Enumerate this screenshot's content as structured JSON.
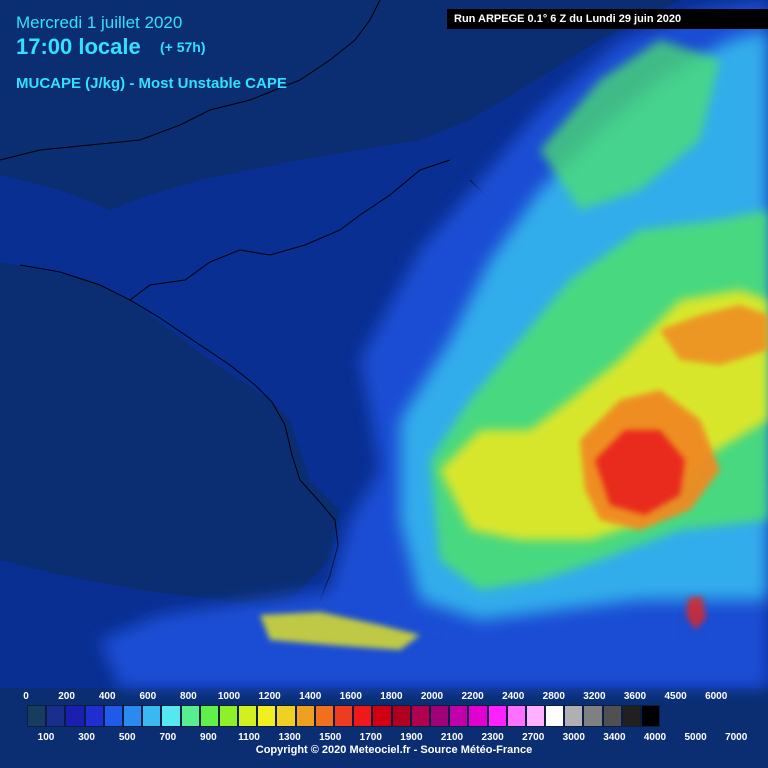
{
  "header": {
    "date": "Mercredi 1 juillet 2020",
    "time": "17:00 locale",
    "lead": "(+ 57h)",
    "parameter": "MUCAPE (J/kg) - Most Unstable CAPE"
  },
  "run_label": "Run ARPEGE 0.1° 6 Z du Lundi 29 juin 2020",
  "legend": {
    "top_labels": [
      "0",
      "200",
      "400",
      "600",
      "800",
      "1000",
      "1200",
      "1400",
      "1600",
      "1800",
      "2000",
      "2200",
      "2400",
      "2800",
      "3200",
      "3600",
      "4500",
      "6000"
    ],
    "bottom_labels": [
      "100",
      "300",
      "500",
      "700",
      "900",
      "1100",
      "1300",
      "1500",
      "1700",
      "1900",
      "2100",
      "2300",
      "2700",
      "3000",
      "3400",
      "4000",
      "5000",
      "7000"
    ],
    "colors": [
      "#173d5e",
      "#1a2f8c",
      "#1a1fb0",
      "#1f2ed0",
      "#1f5ae8",
      "#2a8af0",
      "#3ab8f0",
      "#55e8f0",
      "#55ee90",
      "#5ff04a",
      "#8ef028",
      "#d0f020",
      "#f0f020",
      "#f0d020",
      "#f0a020",
      "#f07020",
      "#f03c1e",
      "#f01818",
      "#d00010",
      "#b00020",
      "#b00050",
      "#a00078",
      "#c000a8",
      "#e000d0",
      "#ff20ff",
      "#ff70ff",
      "#ffb0ff",
      "#ffffff",
      "#b0b0b0",
      "#808080",
      "#505050",
      "#202020",
      "#000000"
    ],
    "copyright": "Copyright © 2020 Meteociel.fr - Source Météo-France"
  },
  "map": {
    "colors": {
      "ocean": "#0b2e72",
      "land_low": "#08319e",
      "blue": "#1b4fd8",
      "cyan": "#34b8ee",
      "green": "#4ee06e",
      "yellow": "#e8e820",
      "orange": "#f08a20",
      "red": "#e8261c",
      "border": "#000000"
    }
  }
}
